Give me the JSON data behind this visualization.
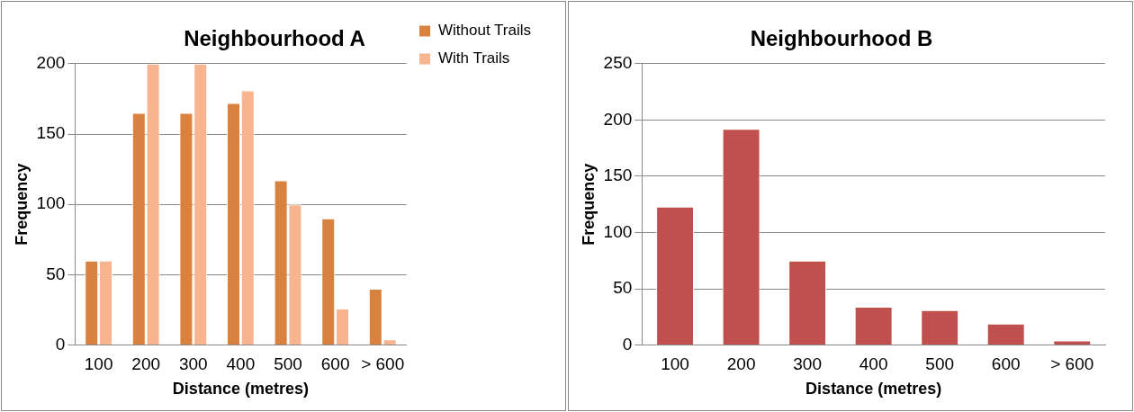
{
  "chart_data": [
    {
      "type": "bar",
      "title": "Neighbourhood A",
      "xlabel": "Distance (metres)",
      "ylabel": "Frequency",
      "categories": [
        "100",
        "200",
        "300",
        "400",
        "500",
        "600",
        "> 600"
      ],
      "series": [
        {
          "name": "Without Trails",
          "color": "#d9823f",
          "values": [
            60,
            165,
            165,
            172,
            117,
            90,
            40
          ]
        },
        {
          "name": "With Trails",
          "color": "#f7b48e",
          "values": [
            60,
            200,
            200,
            181,
            100,
            26,
            4
          ]
        }
      ],
      "ylim": [
        0,
        200
      ],
      "yticks": [
        0,
        50,
        100,
        150,
        200
      ],
      "grid": "y",
      "legend": "right"
    },
    {
      "type": "bar",
      "title": "Neighbourhood B",
      "xlabel": "Distance (metres)",
      "ylabel": "Frequency",
      "categories": [
        "100",
        "200",
        "300",
        "400",
        "500",
        "600",
        "> 600"
      ],
      "series": [
        {
          "color": "#c0504d",
          "values": [
            123,
            192,
            75,
            34,
            31,
            19,
            4
          ]
        }
      ],
      "ylim": [
        0,
        250
      ],
      "yticks": [
        0,
        50,
        100,
        150,
        200,
        250
      ],
      "grid": "y"
    }
  ]
}
